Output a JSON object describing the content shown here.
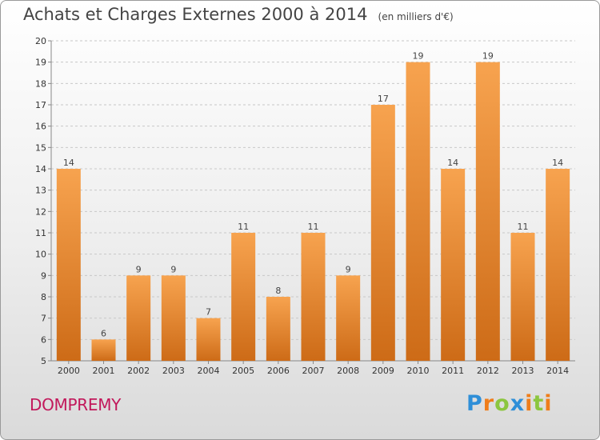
{
  "header": {
    "title": "Achats et Charges Externes 2000 à 2014",
    "unit": "(en milliers d'€)"
  },
  "footer": {
    "commune": "DOMPREMY",
    "brand": "Proxiti"
  },
  "colors": {
    "bar_light": "#f7a34f",
    "bar_dark": "#cd6b17",
    "commune": "#c2185b",
    "brand_p": "#2f8fd8",
    "brand_r": "#ef7d1a",
    "brand_o": "#8cc63f",
    "brand_x": "#2f8fd8",
    "brand_i": "#ef7d1a",
    "brand_t": "#8cc63f",
    "brand_i2": "#ef7d1a"
  },
  "chart_data": {
    "type": "bar",
    "title": "Achats et Charges Externes 2000 à 2014",
    "subtitle": "(en milliers d'€)",
    "categories": [
      "2000",
      "2001",
      "2002",
      "2003",
      "2004",
      "2005",
      "2006",
      "2007",
      "2008",
      "2009",
      "2010",
      "2011",
      "2012",
      "2013",
      "2014"
    ],
    "values": [
      14,
      6,
      9,
      9,
      7,
      11,
      8,
      11,
      9,
      17,
      19,
      14,
      19,
      11,
      14
    ],
    "ylim": [
      5,
      20
    ],
    "yticks": [
      5,
      6,
      7,
      8,
      9,
      10,
      11,
      12,
      13,
      14,
      15,
      16,
      17,
      18,
      19,
      20
    ],
    "grid": "horizontal dashed",
    "legend": "none"
  }
}
